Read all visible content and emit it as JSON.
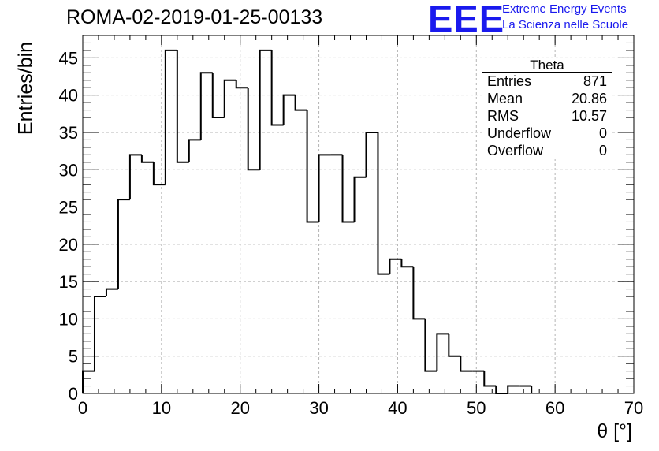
{
  "header": {
    "run_title": "ROMA-02-2019-01-25-00133",
    "logo_text": "EEE",
    "logo_line1": "Extreme Energy Events",
    "logo_line2": "La Scienza nelle Scuole"
  },
  "stats_box": {
    "title": "Theta",
    "rows": [
      {
        "label": "Entries",
        "value": "871"
      },
      {
        "label": "Mean",
        "value": "20.86"
      },
      {
        "label": "RMS",
        "value": "10.57"
      },
      {
        "label": "Underflow",
        "value": "0"
      },
      {
        "label": "Overflow",
        "value": "0"
      }
    ]
  },
  "colors": {
    "logo_blue": "#1a1aee",
    "histogram_line": "#000000",
    "grid": "#b4b4b4"
  },
  "chart_data": {
    "type": "histogram",
    "title": "ROMA-02-2019-01-25-00133",
    "xlabel": "θ [°]",
    "ylabel": "Entries/bin",
    "xlim": [
      0,
      70
    ],
    "ylim": [
      0,
      48
    ],
    "xticks": [
      0,
      10,
      20,
      30,
      40,
      50,
      60,
      70
    ],
    "yticks": [
      0,
      5,
      10,
      15,
      20,
      25,
      30,
      35,
      40,
      45
    ],
    "grid": true,
    "bin_width": 1.5,
    "bins": [
      {
        "x_low": 0.0,
        "count": 3
      },
      {
        "x_low": 1.5,
        "count": 13
      },
      {
        "x_low": 3.0,
        "count": 14
      },
      {
        "x_low": 4.5,
        "count": 26
      },
      {
        "x_low": 6.0,
        "count": 32
      },
      {
        "x_low": 7.5,
        "count": 31
      },
      {
        "x_low": 9.0,
        "count": 28
      },
      {
        "x_low": 10.5,
        "count": 46
      },
      {
        "x_low": 12.0,
        "count": 31
      },
      {
        "x_low": 13.5,
        "count": 34
      },
      {
        "x_low": 15.0,
        "count": 43
      },
      {
        "x_low": 16.5,
        "count": 37
      },
      {
        "x_low": 18.0,
        "count": 42
      },
      {
        "x_low": 19.5,
        "count": 41
      },
      {
        "x_low": 21.0,
        "count": 30
      },
      {
        "x_low": 22.5,
        "count": 46
      },
      {
        "x_low": 24.0,
        "count": 36
      },
      {
        "x_low": 25.5,
        "count": 40
      },
      {
        "x_low": 27.0,
        "count": 38
      },
      {
        "x_low": 28.5,
        "count": 23
      },
      {
        "x_low": 30.0,
        "count": 32
      },
      {
        "x_low": 31.5,
        "count": 32
      },
      {
        "x_low": 33.0,
        "count": 23
      },
      {
        "x_low": 34.5,
        "count": 29
      },
      {
        "x_low": 36.0,
        "count": 35
      },
      {
        "x_low": 37.5,
        "count": 16
      },
      {
        "x_low": 39.0,
        "count": 18
      },
      {
        "x_low": 40.5,
        "count": 17
      },
      {
        "x_low": 42.0,
        "count": 10
      },
      {
        "x_low": 43.5,
        "count": 3
      },
      {
        "x_low": 45.0,
        "count": 8
      },
      {
        "x_low": 46.5,
        "count": 5
      },
      {
        "x_low": 48.0,
        "count": 3
      },
      {
        "x_low": 49.5,
        "count": 3
      },
      {
        "x_low": 51.0,
        "count": 1
      },
      {
        "x_low": 52.5,
        "count": 0
      },
      {
        "x_low": 54.0,
        "count": 1
      },
      {
        "x_low": 55.5,
        "count": 1
      }
    ]
  }
}
